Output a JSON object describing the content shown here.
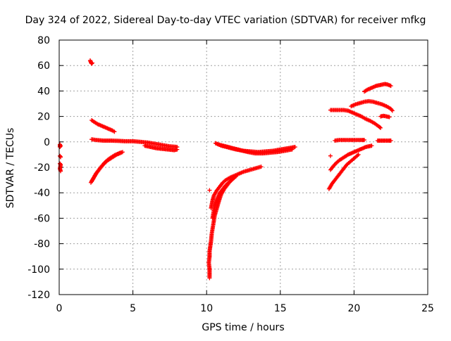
{
  "chart_data": {
    "type": "scatter",
    "title": "Day 324 of 2022, Sidereal Day-to-day VTEC variation (SDTVAR) for receiver mfkg",
    "xlabel": "GPS time / hours",
    "ylabel": "SDTVAR / TECUs",
    "xlim": [
      0,
      25
    ],
    "ylim": [
      -120,
      80
    ],
    "xticks": [
      0,
      5,
      10,
      15,
      20,
      25
    ],
    "yticks": [
      -120,
      -100,
      -80,
      -60,
      -40,
      -20,
      0,
      20,
      40,
      60,
      80
    ],
    "grid": true,
    "legend": "none",
    "marker": "+",
    "color": "#ff0000",
    "series": [
      {
        "name": "t0-a",
        "points": [
          [
            0.05,
            -2
          ],
          [
            0.05,
            -4
          ],
          [
            0.1,
            -3
          ]
        ]
      },
      {
        "name": "t0-b",
        "points": [
          [
            0.05,
            -11
          ],
          [
            0.1,
            -12
          ]
        ]
      },
      {
        "name": "t0-c",
        "points": [
          [
            0.05,
            -17
          ],
          [
            0.1,
            -18
          ],
          [
            0.05,
            -21
          ],
          [
            0.1,
            -23
          ]
        ]
      },
      {
        "name": "s-high",
        "points": [
          [
            2.1,
            64
          ],
          [
            2.15,
            62.5
          ],
          [
            2.2,
            61.5
          ],
          [
            2.25,
            62
          ]
        ]
      },
      {
        "name": "s-desc1",
        "points": [
          [
            2.2,
            17
          ],
          [
            2.4,
            15.5
          ],
          [
            2.6,
            14
          ],
          [
            2.8,
            13
          ],
          [
            3.0,
            12
          ],
          [
            3.2,
            11
          ],
          [
            3.4,
            10
          ],
          [
            3.6,
            9
          ],
          [
            3.75,
            8
          ]
        ]
      },
      {
        "name": "s-flat1",
        "points": [
          [
            2.2,
            2
          ],
          [
            2.5,
            1.5
          ],
          [
            3.0,
            1
          ],
          [
            3.5,
            1
          ],
          [
            4.0,
            0.8
          ],
          [
            4.5,
            0.5
          ],
          [
            5.0,
            0.5
          ],
          [
            5.5,
            0
          ],
          [
            6.0,
            -0.5
          ],
          [
            6.5,
            -1.5
          ],
          [
            7.0,
            -2.5
          ],
          [
            7.5,
            -3.5
          ],
          [
            8.0,
            -4
          ]
        ]
      },
      {
        "name": "s-flat1b",
        "points": [
          [
            5.8,
            -3
          ],
          [
            6.2,
            -4
          ],
          [
            6.6,
            -5
          ],
          [
            7.0,
            -5.5
          ],
          [
            7.4,
            -6
          ],
          [
            7.8,
            -6.5
          ],
          [
            8.0,
            -6
          ]
        ]
      },
      {
        "name": "s-rise1",
        "points": [
          [
            2.15,
            -32
          ],
          [
            2.3,
            -29
          ],
          [
            2.5,
            -25
          ],
          [
            2.7,
            -22
          ],
          [
            2.9,
            -19
          ],
          [
            3.1,
            -16.5
          ],
          [
            3.3,
            -14.5
          ],
          [
            3.5,
            -13
          ],
          [
            3.7,
            -11.5
          ],
          [
            3.9,
            -10
          ],
          [
            4.1,
            -9
          ],
          [
            4.3,
            -8
          ]
        ]
      },
      {
        "name": "s-rise1b",
        "points": [
          [
            2.2,
            -31
          ],
          [
            2.35,
            -28
          ],
          [
            2.55,
            -24
          ],
          [
            2.75,
            -21
          ],
          [
            2.95,
            -18
          ],
          [
            3.15,
            -15.5
          ],
          [
            3.35,
            -13.5
          ],
          [
            3.55,
            -12
          ],
          [
            3.75,
            -10.5
          ],
          [
            3.95,
            -9.5
          ],
          [
            4.15,
            -8.5
          ]
        ]
      },
      {
        "name": "m-dip",
        "points": [
          [
            10.2,
            -107
          ],
          [
            10.2,
            -103
          ],
          [
            10.2,
            -100
          ],
          [
            10.15,
            -95
          ],
          [
            10.2,
            -90
          ],
          [
            10.2,
            -86
          ],
          [
            10.25,
            -82
          ],
          [
            10.3,
            -78
          ],
          [
            10.35,
            -72
          ],
          [
            10.45,
            -65
          ],
          [
            10.55,
            -58
          ],
          [
            10.7,
            -52
          ],
          [
            10.85,
            -46
          ],
          [
            11.0,
            -41
          ],
          [
            11.2,
            -37
          ],
          [
            11.4,
            -34
          ],
          [
            11.6,
            -31
          ],
          [
            11.8,
            -29
          ],
          [
            12.0,
            -27
          ]
        ]
      },
      {
        "name": "m-rise2",
        "points": [
          [
            10.3,
            -52
          ],
          [
            10.4,
            -46
          ],
          [
            10.5,
            -42
          ],
          [
            10.7,
            -38
          ],
          [
            10.9,
            -35
          ],
          [
            11.1,
            -32
          ],
          [
            11.3,
            -30
          ],
          [
            11.6,
            -28
          ],
          [
            11.9,
            -26.5
          ],
          [
            12.2,
            -25
          ],
          [
            12.5,
            -23.5
          ],
          [
            12.8,
            -22.5
          ],
          [
            13.1,
            -21.5
          ],
          [
            13.4,
            -20.5
          ],
          [
            13.7,
            -19.5
          ]
        ]
      },
      {
        "name": "m-rise3",
        "points": [
          [
            10.4,
            -60
          ],
          [
            10.5,
            -53
          ],
          [
            10.6,
            -48
          ],
          [
            10.75,
            -44
          ],
          [
            10.9,
            -40
          ],
          [
            11.1,
            -37
          ],
          [
            11.3,
            -34
          ],
          [
            11.5,
            -32
          ],
          [
            11.7,
            -30
          ]
        ]
      },
      {
        "name": "m-single",
        "points": [
          [
            10.2,
            -38
          ]
        ]
      },
      {
        "name": "m-flat",
        "points": [
          [
            10.6,
            -1
          ],
          [
            11.0,
            -3
          ],
          [
            11.5,
            -4.5
          ],
          [
            12.0,
            -6
          ],
          [
            12.5,
            -7
          ],
          [
            13.0,
            -7.5
          ],
          [
            13.5,
            -8
          ],
          [
            14.0,
            -7.5
          ],
          [
            14.5,
            -7
          ],
          [
            15.0,
            -6
          ],
          [
            15.5,
            -5
          ],
          [
            16.0,
            -4
          ]
        ]
      },
      {
        "name": "m-flat-b",
        "points": [
          [
            10.8,
            -2
          ],
          [
            11.3,
            -3.5
          ],
          [
            11.8,
            -5
          ],
          [
            12.3,
            -6.5
          ],
          [
            12.8,
            -8
          ],
          [
            13.3,
            -9
          ],
          [
            13.8,
            -9
          ],
          [
            14.3,
            -8.5
          ],
          [
            14.8,
            -8
          ],
          [
            15.3,
            -7
          ],
          [
            15.8,
            -6
          ]
        ]
      },
      {
        "name": "e-topflat",
        "points": [
          [
            18.4,
            25
          ],
          [
            18.7,
            25
          ],
          [
            19.0,
            25
          ],
          [
            19.3,
            25
          ],
          [
            19.6,
            24.5
          ]
        ]
      },
      {
        "name": "e-desc",
        "points": [
          [
            19.6,
            24.5
          ],
          [
            19.9,
            23
          ],
          [
            20.2,
            21.5
          ],
          [
            20.5,
            20
          ],
          [
            20.8,
            18
          ],
          [
            21.1,
            16.5
          ],
          [
            21.4,
            14.5
          ],
          [
            21.7,
            12
          ],
          [
            21.8,
            11
          ]
        ]
      },
      {
        "name": "e-arc",
        "points": [
          [
            19.8,
            28
          ],
          [
            20.1,
            29.5
          ],
          [
            20.4,
            30.5
          ],
          [
            20.7,
            31.5
          ],
          [
            21.0,
            32
          ],
          [
            21.3,
            31.5
          ],
          [
            21.6,
            30.5
          ],
          [
            21.9,
            29.5
          ],
          [
            22.2,
            28
          ],
          [
            22.5,
            26
          ],
          [
            22.6,
            24.5
          ]
        ]
      },
      {
        "name": "e-high",
        "points": [
          [
            20.7,
            39.5
          ],
          [
            20.9,
            41
          ],
          [
            21.1,
            42
          ],
          [
            21.3,
            43
          ],
          [
            21.5,
            44
          ],
          [
            21.7,
            44.5
          ],
          [
            21.9,
            45
          ],
          [
            22.1,
            45.5
          ],
          [
            22.3,
            45
          ],
          [
            22.5,
            44
          ]
        ]
      },
      {
        "name": "e-mid20",
        "points": [
          [
            21.8,
            20
          ],
          [
            22.0,
            20.5
          ],
          [
            22.2,
            20
          ],
          [
            22.4,
            19.5
          ]
        ]
      },
      {
        "name": "e-rise-a",
        "points": [
          [
            18.3,
            -37
          ],
          [
            18.5,
            -33
          ],
          [
            18.7,
            -30
          ],
          [
            18.9,
            -27
          ],
          [
            19.1,
            -24
          ],
          [
            19.3,
            -21
          ],
          [
            19.5,
            -18
          ],
          [
            19.7,
            -16
          ],
          [
            19.9,
            -14
          ],
          [
            20.1,
            -12
          ],
          [
            20.3,
            -10
          ]
        ]
      },
      {
        "name": "e-rise-b",
        "points": [
          [
            18.4,
            -22
          ],
          [
            18.6,
            -19
          ],
          [
            18.8,
            -16.5
          ],
          [
            19.0,
            -14.5
          ],
          [
            19.2,
            -13
          ],
          [
            19.4,
            -11.5
          ],
          [
            19.6,
            -10
          ],
          [
            19.8,
            -9
          ],
          [
            20.0,
            -8
          ],
          [
            20.2,
            -7
          ],
          [
            20.4,
            -6
          ],
          [
            20.6,
            -5
          ],
          [
            20.8,
            -4
          ],
          [
            21.0,
            -3.5
          ],
          [
            21.2,
            -3
          ]
        ]
      },
      {
        "name": "e-flat0",
        "points": [
          [
            18.7,
            1
          ],
          [
            19.0,
            1.5
          ],
          [
            19.3,
            1.5
          ],
          [
            19.6,
            1.5
          ],
          [
            19.9,
            1.5
          ],
          [
            20.2,
            1.5
          ],
          [
            20.5,
            1.5
          ],
          [
            20.7,
            1.5
          ]
        ]
      },
      {
        "name": "e-flat-b",
        "points": [
          [
            21.6,
            1
          ],
          [
            21.8,
            1
          ],
          [
            22.0,
            1
          ],
          [
            22.2,
            1
          ],
          [
            22.4,
            1
          ],
          [
            22.5,
            1
          ]
        ]
      },
      {
        "name": "e-single",
        "points": [
          [
            18.4,
            -11
          ]
        ]
      }
    ]
  }
}
